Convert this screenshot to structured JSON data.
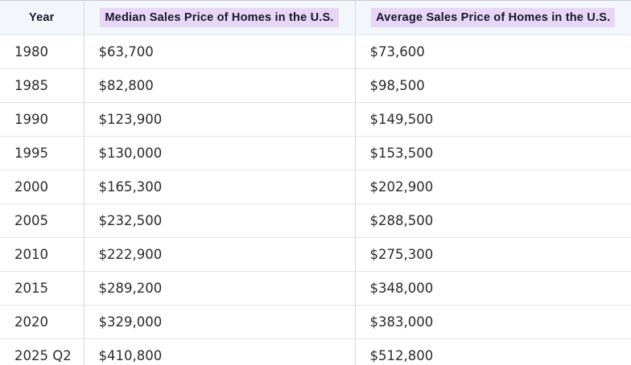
{
  "table": {
    "title": "Sales Price of Homes in the U.S.",
    "columns": {
      "year": {
        "label": "Year",
        "highlighted": false
      },
      "median": {
        "label": "Median Sales Price of Homes in the U.S.",
        "highlighted": true
      },
      "average": {
        "label": "Average Sales Price of Homes in the U.S.",
        "highlighted": true
      }
    },
    "rows": [
      {
        "year": "1980",
        "median": "$63,700",
        "average": "$73,600"
      },
      {
        "year": "1985",
        "median": "$82,800",
        "average": "$98,500"
      },
      {
        "year": "1990",
        "median": "$123,900",
        "average": "$149,500"
      },
      {
        "year": "1995",
        "median": "$130,000",
        "average": "$153,500"
      },
      {
        "year": "2000",
        "median": "$165,300",
        "average": "$202,900"
      },
      {
        "year": "2005",
        "median": "$232,500",
        "average": "$288,500"
      },
      {
        "year": "2010",
        "median": "$222,900",
        "average": "$275,300"
      },
      {
        "year": "2015",
        "median": "$289,200",
        "average": "$348,000"
      },
      {
        "year": "2020",
        "median": "$329,000",
        "average": "$383,000"
      },
      {
        "year": "2025 Q2",
        "median": "$410,800",
        "average": "$512,800"
      }
    ]
  },
  "colors": {
    "header_background": "#f3f6fb",
    "header_highlight": "#e8d6f6",
    "row_background": "#ffffff",
    "divider": "#d9d9d9",
    "text": "#2b2b2b"
  },
  "chart_data": {
    "type": "table",
    "title": "Sales Price of Homes in the U.S.",
    "categories": [
      "1980",
      "1985",
      "1990",
      "1995",
      "2000",
      "2005",
      "2010",
      "2015",
      "2020",
      "2025 Q2"
    ],
    "series": [
      {
        "name": "Median Sales Price of Homes in the U.S.",
        "values": [
          63700,
          82800,
          123900,
          130000,
          165300,
          232500,
          222900,
          289200,
          329000,
          410800
        ]
      },
      {
        "name": "Average Sales Price of Homes in the U.S.",
        "values": [
          73600,
          98500,
          149500,
          153500,
          202900,
          288500,
          275300,
          348000,
          383000,
          512800
        ]
      }
    ]
  }
}
